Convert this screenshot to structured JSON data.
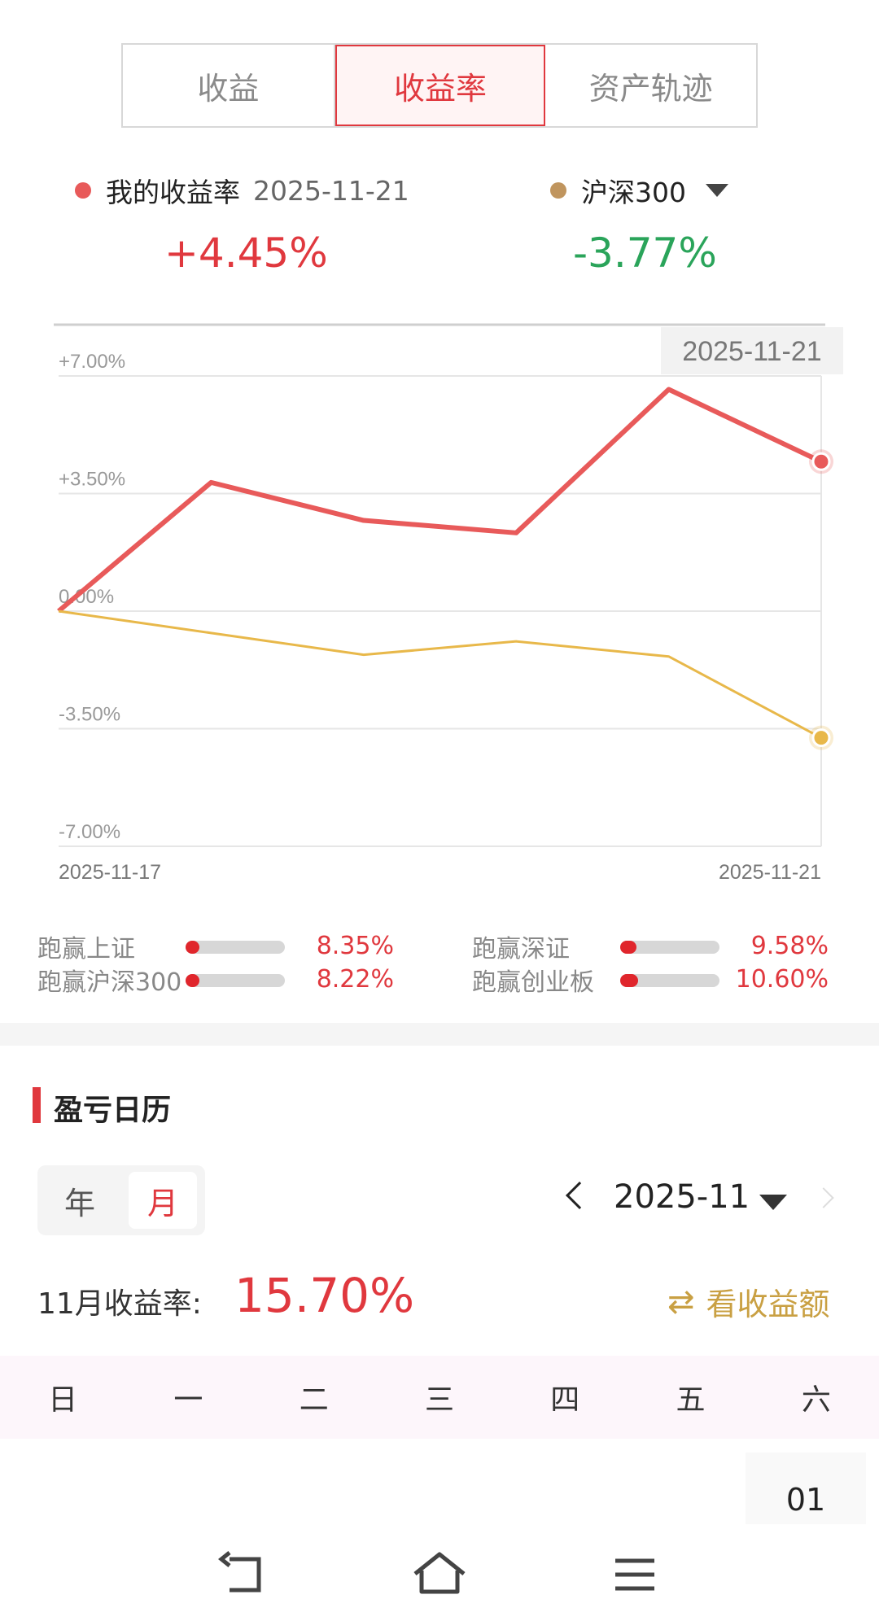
{
  "tabs": [
    {
      "label": "收益",
      "active": false
    },
    {
      "label": "收益率",
      "active": true
    },
    {
      "label": "资产轨迹",
      "active": false
    }
  ],
  "legend": {
    "mine_label": "我的收益率",
    "mine_date": "2025-11-21",
    "mine_value": "+4.45%",
    "mine_color": "#e85a5a",
    "bench_label": "沪深300",
    "bench_value": "-3.77%",
    "bench_color": "#c0955e",
    "bench_value_color": "#2aa45a"
  },
  "chart_data": {
    "type": "line",
    "tooltip_date": "2025-11-21",
    "x_start_label": "2025-11-17",
    "x_end_label": "2025-11-21",
    "y_ticks": [
      "+7.00%",
      "+3.50%",
      "0.00%",
      "-3.50%",
      "-7.00%"
    ],
    "ylim": [
      -7,
      7
    ],
    "series": [
      {
        "name": "我的收益率",
        "color": "#e85a5a",
        "values": [
          0.0,
          3.83,
          2.7,
          2.33,
          6.6,
          4.45
        ]
      },
      {
        "name": "沪深300",
        "color": "#e8b84a",
        "values": [
          0.0,
          -0.65,
          -1.3,
          -0.9,
          -1.35,
          -3.77
        ]
      }
    ]
  },
  "stats": [
    {
      "label": "跑赢上证",
      "value": "8.35%",
      "fill": 0.14
    },
    {
      "label": "跑赢深证",
      "value": "9.58%",
      "fill": 0.16
    },
    {
      "label": "跑赢沪深300",
      "value": "8.22%",
      "fill": 0.14
    },
    {
      "label": "跑赢创业板",
      "value": "10.60%",
      "fill": 0.18
    }
  ],
  "calendar": {
    "title": "盈亏日历",
    "seg_year": "年",
    "seg_month": "月",
    "month": "2025-11",
    "return_label": "11月收益率:",
    "return_value": "15.70%",
    "view_amount": "看收益额",
    "swap_icon": "⇄",
    "weekdays": [
      "日",
      "一",
      "二",
      "三",
      "四",
      "五",
      "六"
    ],
    "first_day": "01"
  }
}
